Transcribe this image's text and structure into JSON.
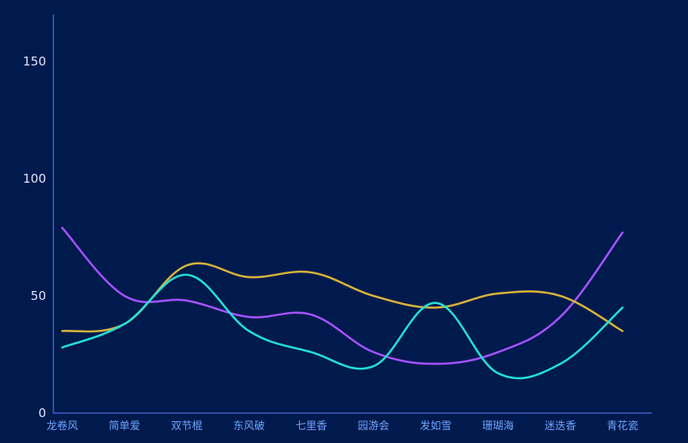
{
  "chart_data": {
    "type": "line",
    "smooth": true,
    "categories": [
      "龙卷风",
      "简单爱",
      "双节棍",
      "东风破",
      "七里香",
      "园游会",
      "发如雪",
      "珊瑚海",
      "迷迭香",
      "青花瓷"
    ],
    "ylim": [
      0,
      170
    ],
    "yticks": [
      0,
      50,
      100,
      150
    ],
    "grid": false,
    "colors": {
      "background": "#001a4d",
      "axis": "#3f63c9",
      "tick_text": "#dfe8ff",
      "category_text": "#6fa5ff"
    },
    "series": [
      {
        "color": "#a452ff",
        "values": [
          79,
          50,
          48,
          41,
          42,
          26,
          21,
          26,
          41,
          77
        ]
      },
      {
        "color": "#d7b23a",
        "values": [
          35,
          38,
          63,
          58,
          60,
          50,
          45,
          51,
          50,
          35
        ]
      },
      {
        "color": "#22e0d6",
        "values": [
          28,
          38,
          59,
          35,
          26,
          20,
          47,
          17,
          21,
          45
        ]
      }
    ]
  }
}
